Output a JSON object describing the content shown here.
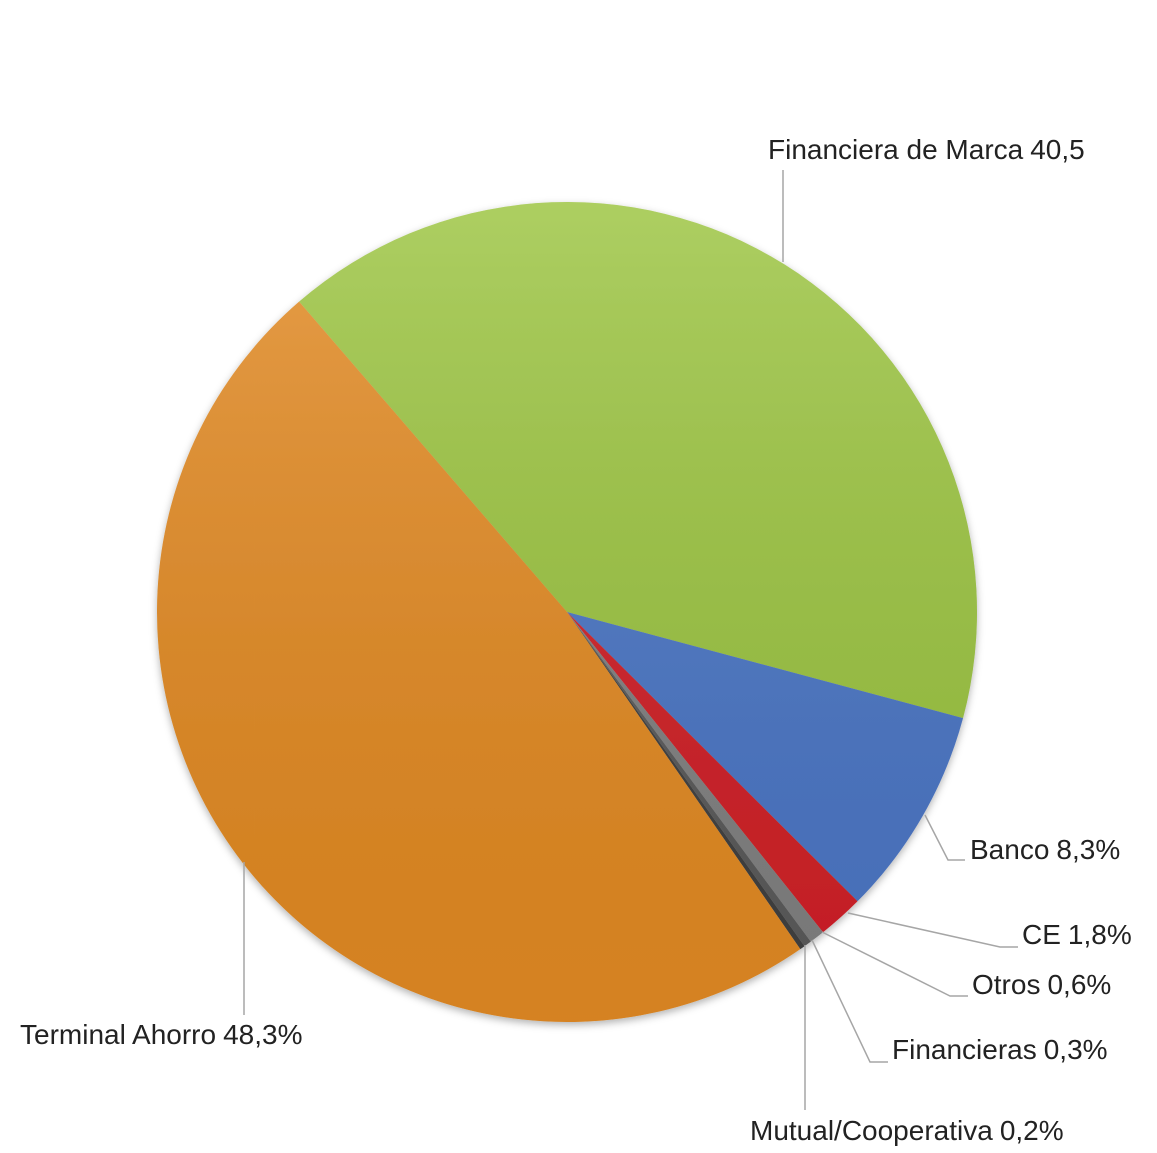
{
  "chart_data": {
    "type": "pie",
    "categories": [
      "Financiera de Marca",
      "Banco",
      "CE",
      "Otros",
      "Financieras",
      "Mutual/Cooperativa",
      "Terminal Ahorro"
    ],
    "values": [
      40.5,
      8.3,
      1.8,
      0.6,
      0.3,
      0.2,
      48.3
    ],
    "value_labels": [
      "40,5",
      "8,3%",
      "1,8%",
      "0,6%",
      "0,3%",
      "0,2%",
      "48,3%"
    ],
    "colors": [
      "#9bc43f",
      "#4a75c5",
      "#d11f26",
      "#808080",
      "#5a5a5a",
      "#3f3f3f",
      "#e38a22"
    ]
  }
}
